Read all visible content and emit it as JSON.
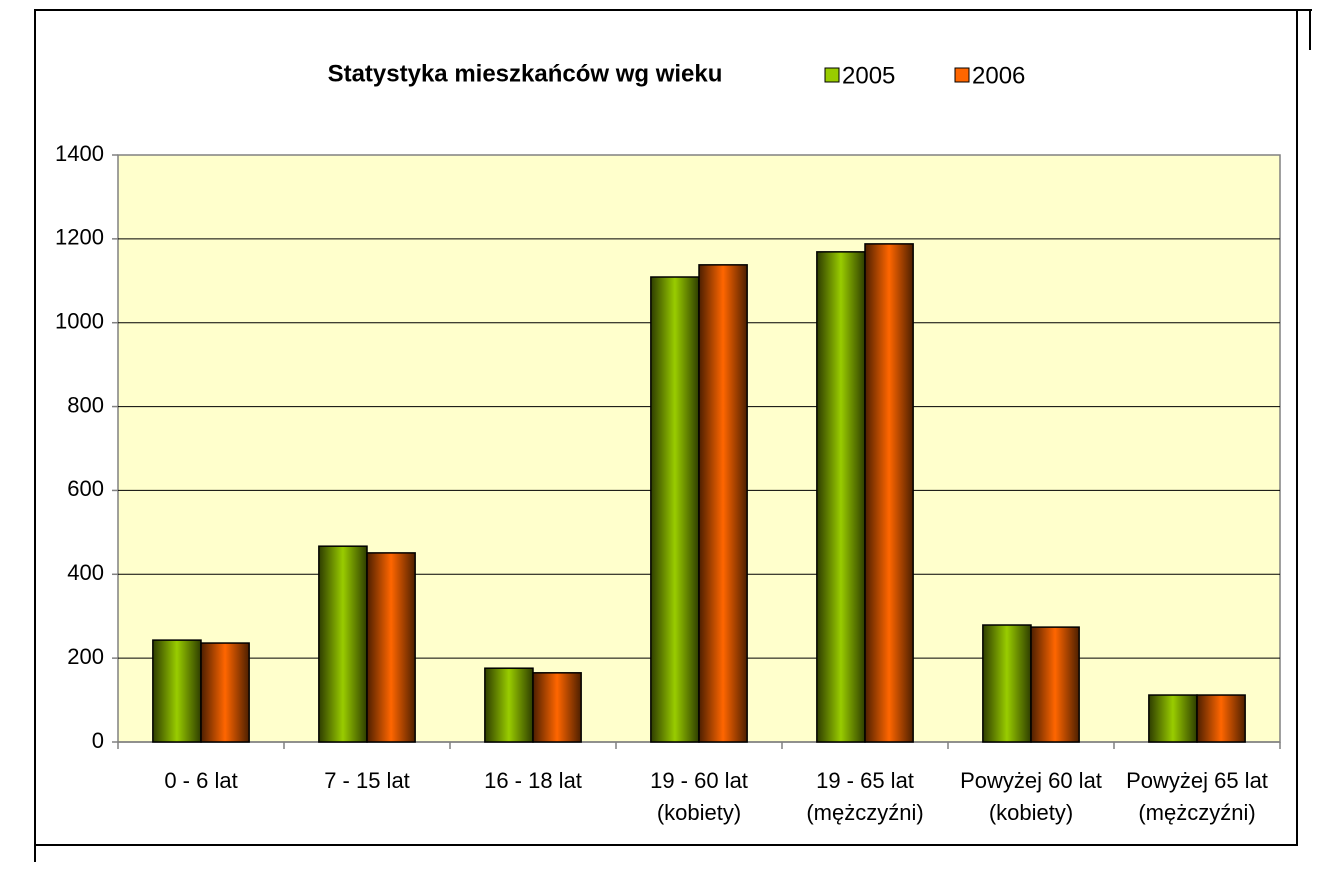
{
  "chart_data": {
    "type": "bar",
    "title": "Statystyka mieszkańców wg wieku",
    "categories": [
      [
        "0 - 6 lat"
      ],
      [
        "7 - 15 lat"
      ],
      [
        "16 - 18 lat"
      ],
      [
        "19 - 60 lat",
        "(kobiety)"
      ],
      [
        "19 - 65 lat",
        "(mężczyźni)"
      ],
      [
        "Powyżej 60 lat",
        "(kobiety)"
      ],
      [
        "Powyżej 65 lat",
        "(mężczyźni)"
      ]
    ],
    "series": [
      {
        "name": "2005",
        "color": "#99cc00",
        "values": [
          243,
          467,
          176,
          1109,
          1169,
          279,
          112
        ]
      },
      {
        "name": "2006",
        "color": "#ff6600",
        "values": [
          236,
          451,
          165,
          1138,
          1188,
          274,
          112
        ]
      }
    ],
    "ylim": [
      0,
      1400
    ],
    "yticks": [
      0,
      200,
      400,
      600,
      800,
      1000,
      1200,
      1400
    ],
    "grid": true,
    "legend": "top"
  }
}
